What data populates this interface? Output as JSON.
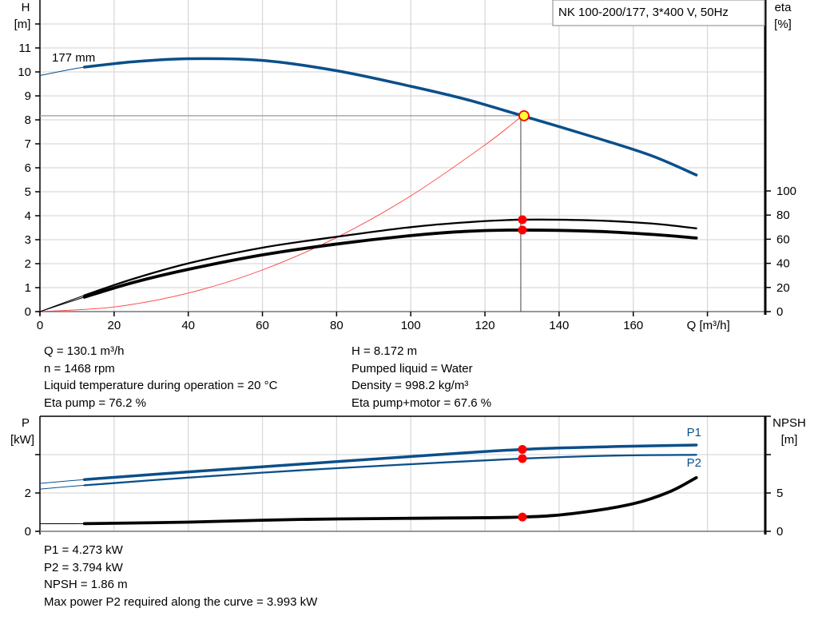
{
  "colors": {
    "head": "#0b4f8a",
    "power": "#0b4f8a",
    "efficiency": "#000000",
    "system": "#ff3b3b",
    "marker": "#ff0000",
    "op_marker_fill": "#ffff33",
    "grid": "#d9d9d9"
  },
  "chart_data": [
    {
      "type": "line",
      "legend_box": "NK 100-200/177, 3*400 V, 50Hz",
      "xlabel": "Q [m³/h]",
      "ylabel": [
        "H",
        "[m]"
      ],
      "y2label": [
        "eta",
        "[%]"
      ],
      "xlim": [
        0,
        195.6
      ],
      "ylim": [
        0,
        13
      ],
      "y2lim": [
        0,
        100
      ],
      "xticks": [
        "0",
        "20",
        "40",
        "60",
        "80",
        "100",
        "120",
        "140",
        "160"
      ],
      "yticks": [
        "0",
        "1",
        "2",
        "3",
        "4",
        "5",
        "6",
        "7",
        "8",
        "9",
        "10",
        "11"
      ],
      "y2ticks": [
        "0",
        "20",
        "40",
        "60",
        "80",
        "100"
      ],
      "grid": true,
      "curve_label": "177 mm",
      "series": [
        {
          "key": "head",
          "axis": "left",
          "x": [
            0,
            12,
            25,
            40,
            60,
            80,
            100,
            115,
            130.1,
            150,
            165,
            177
          ],
          "y": [
            9.85,
            10.2,
            10.42,
            10.55,
            10.48,
            10.05,
            9.4,
            8.85,
            8.17,
            7.25,
            6.5,
            5.7
          ]
        },
        {
          "key": "eta_pump",
          "axis": "right",
          "x": [
            0,
            12,
            25,
            40,
            60,
            80,
            100,
            115,
            130.1,
            150,
            165,
            177
          ],
          "y": [
            0,
            13.5,
            27,
            40,
            53,
            62,
            70,
            74,
            76.2,
            75.5,
            73,
            69
          ]
        },
        {
          "key": "eta_pump_motor",
          "axis": "right",
          "x": [
            0,
            12,
            25,
            40,
            60,
            80,
            100,
            115,
            130.1,
            150,
            165,
            177
          ],
          "y": [
            0,
            12,
            24,
            35,
            47,
            56,
            63,
            66.5,
            67.6,
            66.5,
            64,
            61
          ]
        },
        {
          "key": "system",
          "axis": "left",
          "x": [
            0,
            20,
            40,
            60,
            80,
            100,
            120,
            130.1
          ],
          "y": [
            0,
            0.193,
            0.772,
            1.738,
            3.09,
            4.828,
            6.952,
            8.172
          ]
        }
      ],
      "operating_point": {
        "Q": 130.1,
        "H": 8.172,
        "eta_pump": 76.2,
        "eta_pump_motor": 67.6
      }
    },
    {
      "type": "line",
      "ylabel": [
        "P",
        "[kW]"
      ],
      "y2label": [
        "NPSH",
        "[m]"
      ],
      "xlim": [
        0,
        195.6
      ],
      "ylim": [
        0,
        6
      ],
      "y2lim": [
        0,
        15
      ],
      "yticks": [
        "0",
        "2"
      ],
      "y2ticks": [
        "0",
        "5"
      ],
      "grid": true,
      "series": [
        {
          "key": "P1",
          "name": "P1",
          "axis": "left",
          "x": [
            0,
            12,
            40,
            70,
            100,
            130.1,
            155,
            177
          ],
          "y": [
            2.5,
            2.7,
            3.1,
            3.5,
            3.9,
            4.273,
            4.42,
            4.5
          ]
        },
        {
          "key": "P2",
          "name": "P2",
          "axis": "left",
          "x": [
            0,
            12,
            40,
            70,
            100,
            130.1,
            155,
            177
          ],
          "y": [
            2.2,
            2.4,
            2.8,
            3.18,
            3.5,
            3.794,
            3.95,
            3.99
          ]
        },
        {
          "key": "NPSH",
          "axis": "right",
          "x": [
            0,
            12,
            40,
            70,
            100,
            130.1,
            145,
            160,
            170,
            177
          ],
          "y": [
            1.0,
            1.0,
            1.2,
            1.55,
            1.7,
            1.86,
            2.4,
            3.6,
            5.2,
            7.0
          ]
        }
      ],
      "operating_point": {
        "Q": 130.1,
        "P1": 4.273,
        "P2": 3.794,
        "NPSH": 1.86
      }
    }
  ],
  "results_top": {
    "left": [
      "Q = 130.1 m³/h",
      "n = 1468 rpm",
      "Liquid temperature during operation = 20 °C",
      "Eta pump = 76.2 %"
    ],
    "right": [
      "H = 8.172 m",
      "Pumped liquid = Water",
      "Density = 998.2 kg/m³",
      "Eta pump+motor = 67.6 %"
    ]
  },
  "results_bottom": [
    "P1 = 4.273 kW",
    "P2 = 3.794 kW",
    "NPSH = 1.86 m",
    "Max power P2 required along the curve = 3.993 kW"
  ]
}
